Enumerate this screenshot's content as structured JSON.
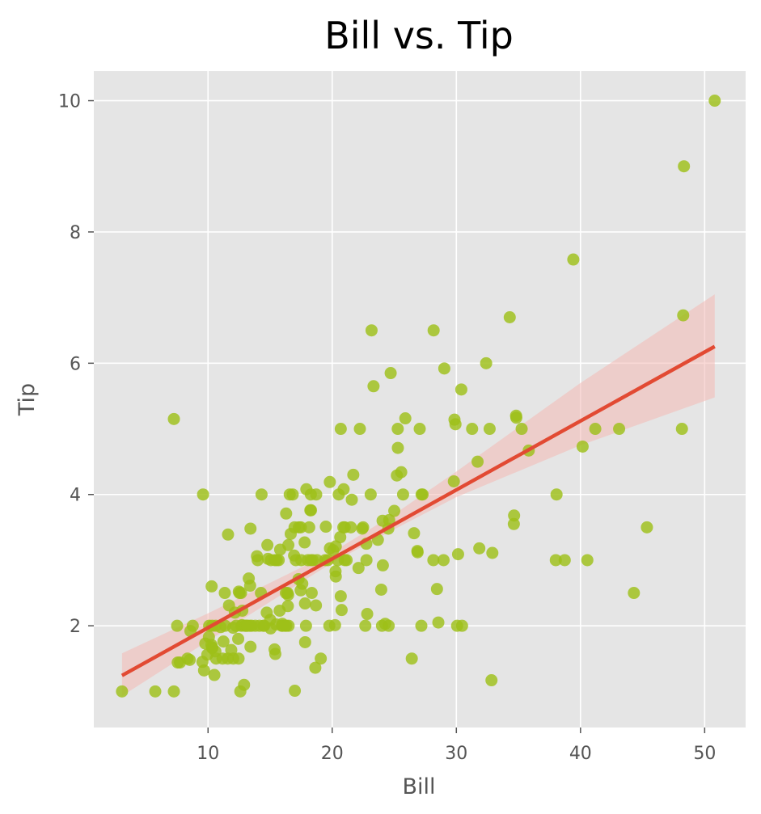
{
  "colors": {
    "panel_background": "#E5E5E5",
    "grid": "#FFFFFF",
    "points": "#9DC019",
    "regression_line": "#E24A33",
    "confidence_band": "#F4B9B4",
    "tick_text": "#555555"
  },
  "chart_data": {
    "type": "scatter",
    "title": "Bill vs. Tip",
    "xlabel": "Bill",
    "ylabel": "Tip",
    "xlim": [
      0.8,
      53.3
    ],
    "ylim": [
      0.45,
      10.45
    ],
    "xticks": [
      10,
      20,
      30,
      40,
      50
    ],
    "yticks": [
      2,
      4,
      6,
      8,
      10
    ],
    "xtick_labels": [
      "10",
      "20",
      "30",
      "40",
      "50"
    ],
    "ytick_labels": [
      "2",
      "4",
      "6",
      "8",
      "10"
    ],
    "grid": true,
    "legend": "none",
    "regression": {
      "x_range": [
        3.07,
        50.81
      ],
      "intercept": 0.92,
      "slope": 0.105,
      "ci_lower": [
        [
          3.07,
          0.93
        ],
        [
          10,
          1.77
        ],
        [
          20,
          2.96
        ],
        [
          25,
          3.47
        ],
        [
          30,
          3.96
        ],
        [
          40,
          4.75
        ],
        [
          50.81,
          5.48
        ]
      ],
      "ci_upper": [
        [
          3.07,
          1.58
        ],
        [
          10,
          2.19
        ],
        [
          20,
          3.12
        ],
        [
          25,
          3.7
        ],
        [
          30,
          4.35
        ],
        [
          40,
          5.7
        ],
        [
          50.81,
          7.05
        ]
      ]
    },
    "points": [
      [
        3.07,
        1.0
      ],
      [
        5.75,
        1.0
      ],
      [
        7.25,
        1.0
      ],
      [
        7.25,
        5.15
      ],
      [
        7.51,
        2.0
      ],
      [
        7.56,
        1.44
      ],
      [
        7.74,
        1.44
      ],
      [
        8.35,
        1.5
      ],
      [
        8.52,
        1.48
      ],
      [
        8.58,
        1.92
      ],
      [
        8.77,
        2.0
      ],
      [
        9.55,
        1.45
      ],
      [
        9.6,
        4.0
      ],
      [
        9.68,
        1.32
      ],
      [
        9.78,
        1.73
      ],
      [
        9.94,
        1.56
      ],
      [
        10.07,
        1.83
      ],
      [
        10.09,
        2.0
      ],
      [
        10.27,
        1.71
      ],
      [
        10.29,
        2.6
      ],
      [
        10.33,
        1.67
      ],
      [
        10.34,
        1.66
      ],
      [
        10.34,
        2.0
      ],
      [
        10.51,
        1.25
      ],
      [
        10.59,
        1.61
      ],
      [
        10.63,
        2.0
      ],
      [
        10.65,
        1.5
      ],
      [
        11.02,
        1.98
      ],
      [
        11.17,
        1.5
      ],
      [
        11.24,
        1.76
      ],
      [
        11.35,
        2.5
      ],
      [
        11.38,
        2.0
      ],
      [
        11.59,
        1.5
      ],
      [
        11.61,
        3.39
      ],
      [
        11.69,
        2.31
      ],
      [
        11.87,
        1.63
      ],
      [
        12.02,
        1.97
      ],
      [
        12.03,
        1.5
      ],
      [
        12.16,
        2.2
      ],
      [
        12.26,
        2.0
      ],
      [
        12.43,
        1.8
      ],
      [
        12.46,
        1.5
      ],
      [
        12.48,
        2.52
      ],
      [
        12.54,
        2.5
      ],
      [
        12.6,
        1.0
      ],
      [
        12.66,
        2.5
      ],
      [
        12.69,
        2.0
      ],
      [
        12.74,
        2.01
      ],
      [
        12.76,
        2.23
      ],
      [
        12.9,
        1.1
      ],
      [
        13.0,
        2.0
      ],
      [
        13.03,
        2.0
      ],
      [
        13.13,
        2.0
      ],
      [
        13.16,
        2.0
      ],
      [
        13.28,
        2.72
      ],
      [
        13.37,
        2.0
      ],
      [
        13.39,
        2.61
      ],
      [
        13.42,
        1.68
      ],
      [
        13.42,
        3.48
      ],
      [
        13.51,
        2.0
      ],
      [
        13.81,
        2.0
      ],
      [
        13.94,
        3.06
      ],
      [
        14.0,
        3.0
      ],
      [
        14.15,
        2.0
      ],
      [
        14.26,
        2.5
      ],
      [
        14.31,
        4.0
      ],
      [
        14.48,
        2.0
      ],
      [
        14.52,
        2.0
      ],
      [
        14.73,
        2.2
      ],
      [
        14.78,
        3.23
      ],
      [
        14.83,
        3.02
      ],
      [
        15.01,
        2.09
      ],
      [
        15.04,
        1.96
      ],
      [
        15.06,
        3.0
      ],
      [
        15.36,
        1.64
      ],
      [
        15.38,
        3.0
      ],
      [
        15.42,
        1.57
      ],
      [
        15.48,
        2.02
      ],
      [
        15.53,
        3.0
      ],
      [
        15.69,
        3.0
      ],
      [
        15.77,
        2.23
      ],
      [
        15.81,
        3.16
      ],
      [
        15.95,
        2.0
      ],
      [
        15.98,
        2.03
      ],
      [
        16.0,
        2.0
      ],
      [
        16.21,
        2.0
      ],
      [
        16.27,
        2.5
      ],
      [
        16.29,
        3.71
      ],
      [
        16.31,
        2.0
      ],
      [
        16.4,
        2.5
      ],
      [
        16.43,
        2.3
      ],
      [
        16.45,
        2.47
      ],
      [
        16.47,
        3.23
      ],
      [
        16.49,
        2.0
      ],
      [
        16.58,
        4.0
      ],
      [
        16.66,
        3.4
      ],
      [
        16.82,
        4.0
      ],
      [
        16.93,
        3.07
      ],
      [
        16.97,
        3.5
      ],
      [
        16.99,
        1.01
      ],
      [
        17.07,
        3.0
      ],
      [
        17.29,
        2.71
      ],
      [
        17.31,
        3.5
      ],
      [
        17.46,
        2.54
      ],
      [
        17.47,
        3.5
      ],
      [
        17.51,
        3.0
      ],
      [
        17.59,
        2.64
      ],
      [
        17.78,
        3.27
      ],
      [
        17.81,
        2.34
      ],
      [
        17.82,
        1.75
      ],
      [
        17.89,
        2.0
      ],
      [
        17.92,
        4.08
      ],
      [
        18.04,
        3.0
      ],
      [
        18.15,
        3.5
      ],
      [
        18.24,
        3.76
      ],
      [
        18.28,
        4.0
      ],
      [
        18.29,
        3.0
      ],
      [
        18.29,
        3.76
      ],
      [
        18.35,
        2.5
      ],
      [
        18.43,
        3.0
      ],
      [
        18.64,
        1.36
      ],
      [
        18.69,
        2.31
      ],
      [
        18.71,
        4.0
      ],
      [
        18.78,
        3.0
      ],
      [
        19.08,
        1.5
      ],
      [
        19.44,
        3.0
      ],
      [
        19.49,
        3.51
      ],
      [
        19.65,
        3.0
      ],
      [
        19.77,
        2.0
      ],
      [
        19.81,
        4.19
      ],
      [
        19.82,
        3.18
      ],
      [
        20.08,
        3.15
      ],
      [
        20.23,
        2.01
      ],
      [
        20.27,
        2.83
      ],
      [
        20.29,
        2.75
      ],
      [
        20.29,
        3.21
      ],
      [
        20.45,
        3.0
      ],
      [
        20.53,
        4.0
      ],
      [
        20.65,
        3.35
      ],
      [
        20.69,
        2.45
      ],
      [
        20.69,
        5.0
      ],
      [
        20.76,
        2.24
      ],
      [
        20.9,
        3.5
      ],
      [
        20.92,
        4.08
      ],
      [
        21.01,
        3.5
      ],
      [
        21.01,
        3.0
      ],
      [
        21.16,
        3.0
      ],
      [
        21.5,
        3.5
      ],
      [
        21.58,
        3.92
      ],
      [
        21.7,
        4.3
      ],
      [
        22.12,
        2.88
      ],
      [
        22.23,
        5.0
      ],
      [
        22.42,
        3.48
      ],
      [
        22.49,
        3.5
      ],
      [
        22.67,
        2.0
      ],
      [
        22.75,
        3.25
      ],
      [
        22.76,
        3.0
      ],
      [
        22.82,
        2.18
      ],
      [
        23.1,
        4.0
      ],
      [
        23.17,
        6.5
      ],
      [
        23.33,
        5.65
      ],
      [
        23.68,
        3.31
      ],
      [
        23.95,
        2.55
      ],
      [
        24.01,
        2.0
      ],
      [
        24.06,
        3.6
      ],
      [
        24.08,
        2.92
      ],
      [
        24.27,
        2.03
      ],
      [
        24.52,
        3.48
      ],
      [
        24.55,
        2.0
      ],
      [
        24.59,
        3.61
      ],
      [
        24.71,
        5.85
      ],
      [
        25.0,
        3.75
      ],
      [
        25.21,
        4.29
      ],
      [
        25.28,
        5.0
      ],
      [
        25.29,
        4.71
      ],
      [
        25.56,
        4.34
      ],
      [
        25.71,
        4.0
      ],
      [
        25.89,
        5.16
      ],
      [
        26.41,
        1.5
      ],
      [
        26.59,
        3.41
      ],
      [
        26.86,
        3.14
      ],
      [
        26.88,
        3.12
      ],
      [
        27.05,
        5.0
      ],
      [
        27.18,
        2.0
      ],
      [
        27.2,
        4.0
      ],
      [
        27.28,
        4.0
      ],
      [
        28.15,
        3.0
      ],
      [
        28.17,
        6.5
      ],
      [
        28.44,
        2.56
      ],
      [
        28.55,
        2.05
      ],
      [
        28.97,
        3.0
      ],
      [
        29.03,
        5.92
      ],
      [
        29.8,
        4.2
      ],
      [
        29.85,
        5.14
      ],
      [
        29.93,
        5.07
      ],
      [
        30.06,
        2.0
      ],
      [
        30.14,
        3.09
      ],
      [
        30.4,
        5.6
      ],
      [
        30.46,
        2.0
      ],
      [
        31.27,
        5.0
      ],
      [
        31.71,
        4.5
      ],
      [
        31.85,
        3.18
      ],
      [
        32.4,
        6.0
      ],
      [
        32.68,
        5.0
      ],
      [
        32.83,
        1.17
      ],
      [
        32.9,
        3.11
      ],
      [
        34.3,
        6.7
      ],
      [
        34.63,
        3.55
      ],
      [
        34.65,
        3.68
      ],
      [
        34.81,
        5.2
      ],
      [
        34.83,
        5.17
      ],
      [
        35.26,
        5.0
      ],
      [
        35.83,
        4.67
      ],
      [
        38.01,
        3.0
      ],
      [
        38.07,
        4.0
      ],
      [
        38.73,
        3.0
      ],
      [
        39.42,
        7.58
      ],
      [
        40.17,
        4.73
      ],
      [
        40.55,
        3.0
      ],
      [
        41.19,
        5.0
      ],
      [
        43.11,
        5.0
      ],
      [
        44.3,
        2.5
      ],
      [
        45.35,
        3.5
      ],
      [
        48.17,
        5.0
      ],
      [
        48.27,
        6.73
      ],
      [
        48.33,
        9.0
      ],
      [
        50.81,
        10.0
      ]
    ]
  }
}
